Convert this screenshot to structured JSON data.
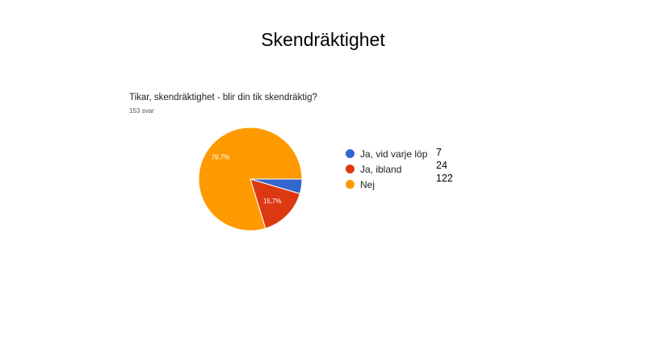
{
  "slide": {
    "title": "Skendräktighet"
  },
  "chart_data": {
    "type": "pie",
    "title": "Tikar, skendräktighet - blir din tik skendräktig?",
    "subtitle": "153 svar",
    "categories": [
      "Ja, vid varje löp",
      "Ja, ibland",
      "Nej"
    ],
    "values": [
      7,
      24,
      122
    ],
    "value_labels": [
      "",
      "15,7%",
      "79,7%"
    ],
    "colors": [
      "#3366cc",
      "#dc3912",
      "#ff9900"
    ],
    "legend_position": "right"
  },
  "counts": [
    "7",
    "24",
    "122"
  ]
}
